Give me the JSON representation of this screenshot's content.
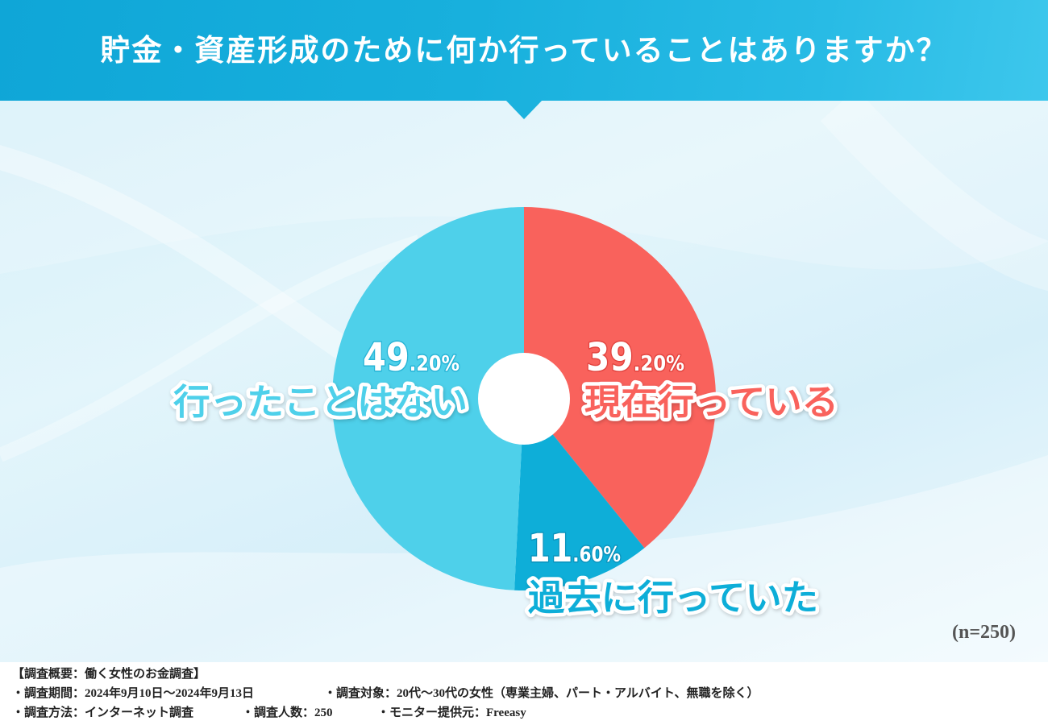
{
  "chart_data": {
    "type": "pie",
    "title": "貯金・資産形成のために何か行っていることはありますか？",
    "categories": [
      "現在行っている",
      "過去に行っていた",
      "行ったことはない"
    ],
    "values": [
      39.2,
      11.6,
      49.2
    ],
    "value_labels": [
      "39.20%",
      "11.60%",
      "49.20%"
    ],
    "colors": [
      "#f9625c",
      "#0eaed8",
      "#4ed0ea"
    ],
    "donut": true,
    "start": "top",
    "direction": "clockwise",
    "legend": "none",
    "annotation": "(n=250)"
  },
  "footer": {
    "heading": "【調査概要：働く女性のお金調査】",
    "lines": [
      [
        "・調査期間：2024年9月10日～2024年9月13日",
        "・調査対象：20代～30代の女性（専業主婦、パート・アルバイト、無職を除く）"
      ],
      [
        "・調査方法：インターネット調査",
        "・調査人数：250",
        "・モニター提供元：Freeasy"
      ]
    ]
  }
}
